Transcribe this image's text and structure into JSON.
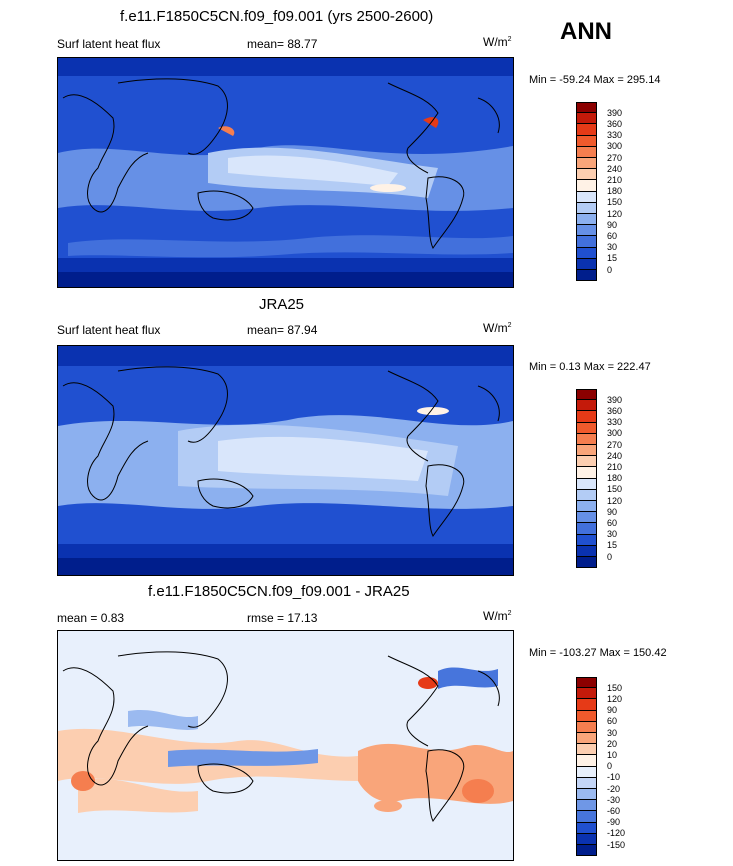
{
  "header": {
    "season": "ANN"
  },
  "panels": [
    {
      "title": "f.e11.F1850C5CN.f09_f09.001 (yrs 2500-2600)",
      "left_label": "Surf latent heat flux",
      "mean_text": "mean=  88.77",
      "units": "W/m",
      "units_sup": "2",
      "minmax": "Min = -59.24 Max = 295.14",
      "cbar_labels": [
        "390",
        "360",
        "330",
        "300",
        "270",
        "240",
        "210",
        "180",
        "150",
        "120",
        "90",
        "60",
        "30",
        "15",
        "0"
      ],
      "cbar_colors": [
        "#8b0000",
        "#c41a0a",
        "#e63a17",
        "#f05a2c",
        "#f57e4f",
        "#f9a57a",
        "#fcceb0",
        "#fff2e6",
        "#d9e6fb",
        "#b3ccf5",
        "#8cb0ef",
        "#6690e6",
        "#4270dc",
        "#2050d0",
        "#0a32b0",
        "#001e8c"
      ]
    },
    {
      "title": "JRA25",
      "left_label": "Surf latent heat flux",
      "mean_text": "mean=  87.94",
      "units": "W/m",
      "units_sup": "2",
      "minmax": "Min =   0.13 Max = 222.47",
      "cbar_labels": [
        "390",
        "360",
        "330",
        "300",
        "270",
        "240",
        "210",
        "180",
        "150",
        "120",
        "90",
        "60",
        "30",
        "15",
        "0"
      ],
      "cbar_colors": [
        "#8b0000",
        "#c41a0a",
        "#e63a17",
        "#f05a2c",
        "#f57e4f",
        "#f9a57a",
        "#fcceb0",
        "#fff2e6",
        "#d9e6fb",
        "#b3ccf5",
        "#8cb0ef",
        "#6690e6",
        "#4270dc",
        "#2050d0",
        "#0a32b0",
        "#001e8c"
      ]
    },
    {
      "title": "f.e11.F1850C5CN.f09_f09.001 - JRA25",
      "left_label": "mean =   0.83",
      "mean_text": "rmse =  17.13",
      "units": "W/m",
      "units_sup": "2",
      "minmax": "Min = -103.27 Max = 150.42",
      "cbar_labels": [
        "150",
        "120",
        "90",
        "60",
        "30",
        "20",
        "10",
        "0",
        "-10",
        "-20",
        "-30",
        "-60",
        "-90",
        "-120",
        "-150"
      ],
      "cbar_colors": [
        "#8b0000",
        "#c41a0a",
        "#e63a17",
        "#f05a2c",
        "#f57e4f",
        "#f9a57a",
        "#fcceb0",
        "#fff2e6",
        "#e8f0fc",
        "#c4d6f7",
        "#9bbaf0",
        "#6f97e6",
        "#4775dc",
        "#2050d0",
        "#0a32b0",
        "#001e8c"
      ]
    }
  ]
}
